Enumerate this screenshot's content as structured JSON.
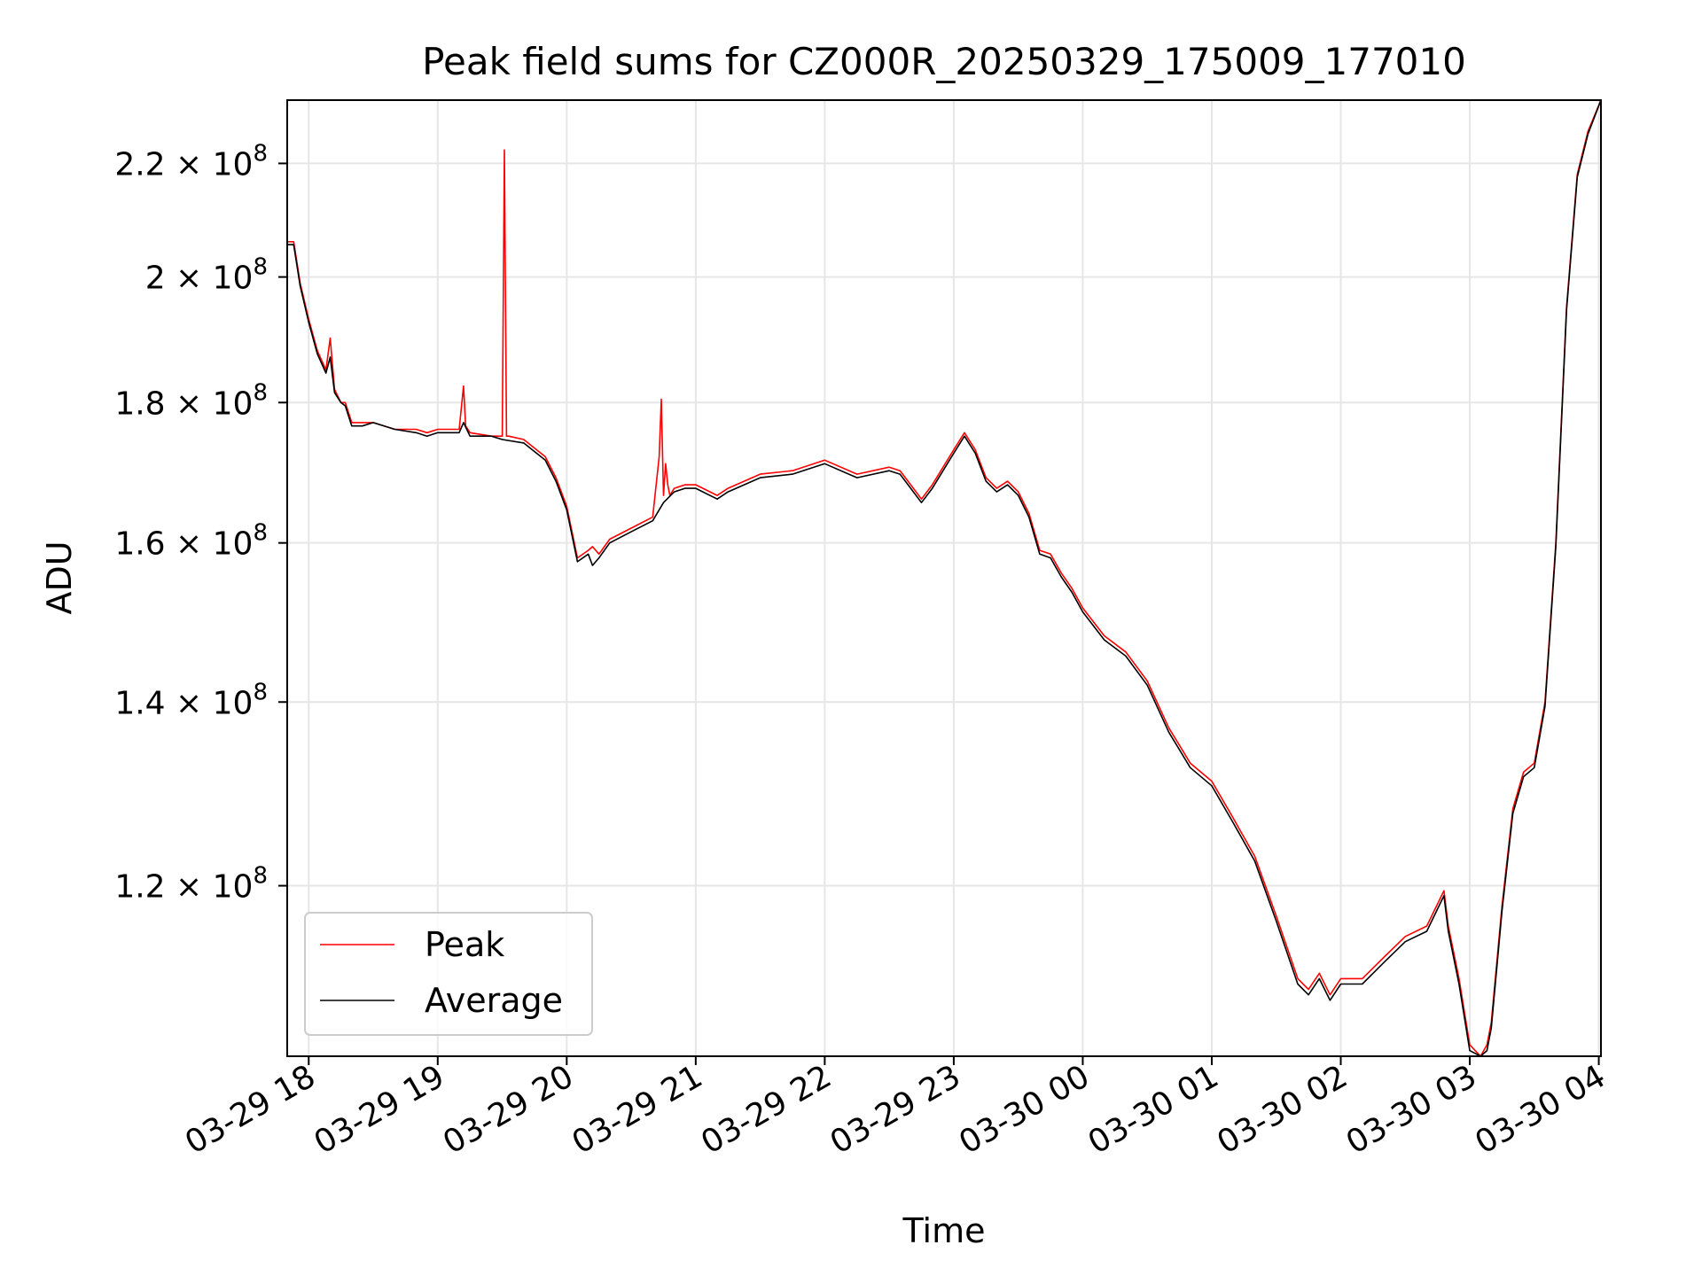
{
  "chart_data": {
    "type": "line",
    "title": "Peak field sums for CZ000R_20250329_175009_177010",
    "xlabel": "Time",
    "ylabel": "ADU",
    "yscale": "log",
    "ylim": [
      104000000,
      232000000
    ],
    "xlim": [
      "03-29 17:50",
      "03-30 04:01"
    ],
    "grid": true,
    "legend_position": "lower-left",
    "x_ticks": [
      "03-29 18",
      "03-29 19",
      "03-29 20",
      "03-29 21",
      "03-29 22",
      "03-29 23",
      "03-30 00",
      "03-30 01",
      "03-30 02",
      "03-30 03",
      "03-30 04"
    ],
    "x_tick_hours": [
      18,
      19,
      20,
      21,
      22,
      23,
      24,
      25,
      26,
      27,
      28
    ],
    "y_ticks": [
      {
        "value": 120000000,
        "mantissa": "1.2",
        "exp": "8"
      },
      {
        "value": 140000000,
        "mantissa": "1.4",
        "exp": "8"
      },
      {
        "value": 160000000,
        "mantissa": "1.6",
        "exp": "8"
      },
      {
        "value": 180000000,
        "mantissa": "1.8",
        "exp": "8"
      },
      {
        "value": 200000000,
        "mantissa": "2",
        "exp": "8"
      },
      {
        "value": 220000000,
        "mantissa": "2.2",
        "exp": "8"
      }
    ],
    "series": [
      {
        "name": "Peak",
        "color": "#ff0000",
        "x": [
          "03-29 17:50",
          "03-29 17:53",
          "03-29 17:56",
          "03-29 18:00",
          "03-29 18:04",
          "03-29 18:08",
          "03-29 18:10",
          "03-29 18:12",
          "03-29 18:15",
          "03-29 18:17",
          "03-29 18:20",
          "03-29 18:25",
          "03-29 18:30",
          "03-29 18:40",
          "03-29 18:50",
          "03-29 18:55",
          "03-29 19:00",
          "03-29 19:10",
          "03-29 19:12",
          "03-29 19:13",
          "03-29 19:15",
          "03-29 19:25",
          "03-29 19:30",
          "03-29 19:31",
          "03-29 19:32",
          "03-29 19:33",
          "03-29 19:40",
          "03-29 19:50",
          "03-29 19:55",
          "03-29 20:00",
          "03-29 20:05",
          "03-29 20:10",
          "03-29 20:12",
          "03-29 20:15",
          "03-29 20:20",
          "03-29 20:30",
          "03-29 20:40",
          "03-29 20:43",
          "03-29 20:44",
          "03-29 20:45",
          "03-29 20:46",
          "03-29 20:47",
          "03-29 20:48",
          "03-29 20:50",
          "03-29 20:55",
          "03-29 21:00",
          "03-29 21:10",
          "03-29 21:15",
          "03-29 21:30",
          "03-29 21:45",
          "03-29 22:00",
          "03-29 22:15",
          "03-29 22:30",
          "03-29 22:35",
          "03-29 22:40",
          "03-29 22:45",
          "03-29 22:50",
          "03-29 23:00",
          "03-29 23:05",
          "03-29 23:10",
          "03-29 23:15",
          "03-29 23:20",
          "03-29 23:25",
          "03-29 23:30",
          "03-29 23:35",
          "03-29 23:40",
          "03-29 23:45",
          "03-29 23:50",
          "03-29 23:55",
          "03-30 00:00",
          "03-30 00:10",
          "03-30 00:20",
          "03-30 00:30",
          "03-30 00:40",
          "03-30 00:45",
          "03-30 00:50",
          "03-30 01:00",
          "03-30 01:10",
          "03-30 01:20",
          "03-30 01:30",
          "03-30 01:40",
          "03-30 01:45",
          "03-30 01:50",
          "03-30 01:55",
          "03-30 02:00",
          "03-30 02:10",
          "03-30 02:20",
          "03-30 02:30",
          "03-30 02:40",
          "03-30 02:48",
          "03-30 02:50",
          "03-30 02:55",
          "03-30 03:00",
          "03-30 03:05",
          "03-30 03:08",
          "03-30 03:10",
          "03-30 03:15",
          "03-30 03:20",
          "03-30 03:25",
          "03-30 03:30",
          "03-30 03:35",
          "03-30 03:40",
          "03-30 03:45",
          "03-30 03:50",
          "03-30 03:55",
          "03-30 04:01"
        ],
        "values": [
          206000000,
          206000000,
          199000000,
          193000000,
          188000000,
          185000000,
          190000000,
          182000000,
          180000000,
          180000000,
          177000000,
          177000000,
          177000000,
          176000000,
          176000000,
          175500000,
          176000000,
          176000000,
          182500000,
          176500000,
          175500000,
          175000000,
          175000000,
          222500000,
          175000000,
          175000000,
          174500000,
          172000000,
          169000000,
          165000000,
          158000000,
          159000000,
          159500000,
          158500000,
          160500000,
          162000000,
          163500000,
          172000000,
          180500000,
          166500000,
          171000000,
          168000000,
          166500000,
          167500000,
          168000000,
          168000000,
          166500000,
          167500000,
          169500000,
          170000000,
          171500000,
          169500000,
          170500000,
          170000000,
          168000000,
          166000000,
          168000000,
          173000000,
          175500000,
          173000000,
          169000000,
          167500000,
          168500000,
          167000000,
          164000000,
          159000000,
          158500000,
          156000000,
          154000000,
          151500000,
          148000000,
          146000000,
          142500000,
          137000000,
          135000000,
          133000000,
          131000000,
          127000000,
          123000000,
          117000000,
          111000000,
          110000000,
          111500000,
          109500000,
          111000000,
          111000000,
          113000000,
          115000000,
          116000000,
          119500000,
          116000000,
          111000000,
          105000000,
          104000000,
          105000000,
          107000000,
          118000000,
          128000000,
          132000000,
          133000000,
          140000000,
          160000000,
          195000000,
          218000000,
          226000000,
          232000000
        ]
      },
      {
        "name": "Average",
        "color": "#000000",
        "x": [
          "03-29 17:50",
          "03-29 17:53",
          "03-29 17:56",
          "03-29 18:00",
          "03-29 18:04",
          "03-29 18:08",
          "03-29 18:10",
          "03-29 18:12",
          "03-29 18:15",
          "03-29 18:17",
          "03-29 18:20",
          "03-29 18:25",
          "03-29 18:30",
          "03-29 18:40",
          "03-29 18:50",
          "03-29 18:55",
          "03-29 19:00",
          "03-29 19:10",
          "03-29 19:12",
          "03-29 19:15",
          "03-29 19:25",
          "03-29 19:30",
          "03-29 19:40",
          "03-29 19:50",
          "03-29 19:55",
          "03-29 20:00",
          "03-29 20:05",
          "03-29 20:10",
          "03-29 20:12",
          "03-29 20:15",
          "03-29 20:20",
          "03-29 20:30",
          "03-29 20:40",
          "03-29 20:45",
          "03-29 20:50",
          "03-29 20:55",
          "03-29 21:00",
          "03-29 21:10",
          "03-29 21:15",
          "03-29 21:30",
          "03-29 21:45",
          "03-29 22:00",
          "03-29 22:15",
          "03-29 22:30",
          "03-29 22:35",
          "03-29 22:40",
          "03-29 22:45",
          "03-29 22:50",
          "03-29 23:00",
          "03-29 23:05",
          "03-29 23:10",
          "03-29 23:15",
          "03-29 23:20",
          "03-29 23:25",
          "03-29 23:30",
          "03-29 23:35",
          "03-29 23:40",
          "03-29 23:45",
          "03-29 23:50",
          "03-29 23:55",
          "03-30 00:00",
          "03-30 00:10",
          "03-30 00:20",
          "03-30 00:30",
          "03-30 00:40",
          "03-30 00:45",
          "03-30 00:50",
          "03-30 01:00",
          "03-30 01:10",
          "03-30 01:20",
          "03-30 01:30",
          "03-30 01:40",
          "03-30 01:45",
          "03-30 01:50",
          "03-30 01:55",
          "03-30 02:00",
          "03-30 02:10",
          "03-30 02:20",
          "03-30 02:30",
          "03-30 02:40",
          "03-30 02:48",
          "03-30 02:50",
          "03-30 02:55",
          "03-30 03:00",
          "03-30 03:05",
          "03-30 03:08",
          "03-30 03:10",
          "03-30 03:15",
          "03-30 03:20",
          "03-30 03:25",
          "03-30 03:30",
          "03-30 03:35",
          "03-30 03:40",
          "03-30 03:45",
          "03-30 03:50",
          "03-30 03:55",
          "03-30 04:01"
        ],
        "values": [
          205500000,
          205500000,
          198500000,
          192500000,
          187500000,
          184500000,
          187000000,
          181500000,
          180000000,
          179500000,
          176500000,
          176500000,
          177000000,
          176000000,
          175500000,
          175000000,
          175500000,
          175500000,
          177000000,
          175000000,
          175000000,
          174500000,
          174000000,
          171500000,
          168500000,
          164500000,
          157500000,
          158500000,
          157000000,
          158000000,
          160000000,
          161500000,
          163000000,
          165500000,
          167000000,
          167500000,
          167500000,
          166000000,
          167000000,
          169000000,
          169500000,
          171000000,
          169000000,
          170000000,
          169500000,
          167500000,
          165500000,
          167500000,
          172500000,
          175000000,
          172500000,
          168500000,
          167000000,
          168000000,
          166500000,
          163500000,
          158500000,
          158000000,
          155500000,
          153500000,
          151000000,
          147500000,
          145500000,
          142000000,
          136500000,
          134500000,
          132500000,
          130500000,
          126500000,
          122500000,
          116500000,
          110500000,
          109500000,
          111000000,
          109000000,
          110500000,
          110500000,
          112500000,
          114500000,
          115500000,
          119000000,
          115500000,
          110500000,
          104500000,
          104000000,
          104500000,
          106500000,
          117500000,
          127500000,
          131500000,
          132500000,
          139500000,
          159500000,
          194500000,
          217500000,
          225500000,
          232000000
        ]
      }
    ]
  }
}
